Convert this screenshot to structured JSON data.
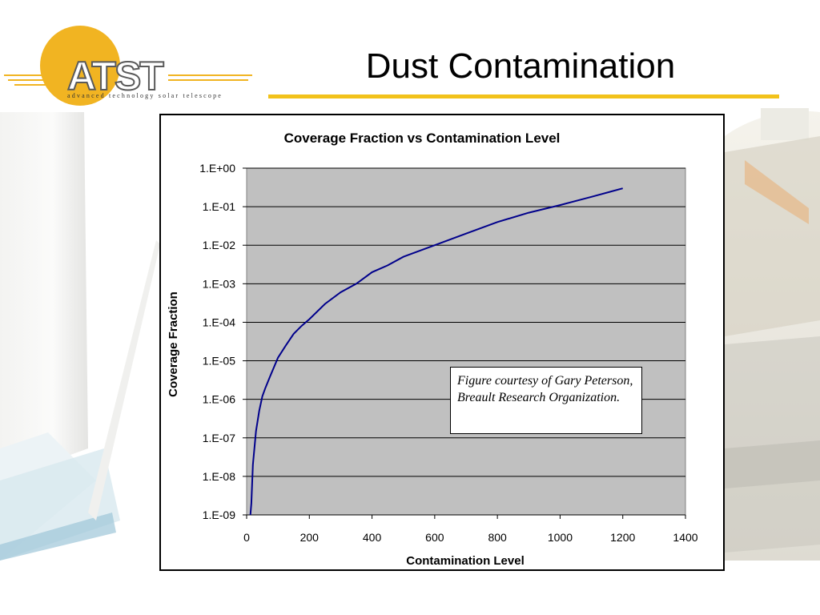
{
  "slide": {
    "title": "Dust Contamination",
    "logo_text": "ATST",
    "logo_tagline": "advanced technology solar telescope",
    "accent_color": "#f2c21a"
  },
  "note": {
    "text": "Figure courtesy of Gary Peterson, Breault Research Organization."
  },
  "chart_data": {
    "type": "line",
    "title": "Coverage Fraction vs Contamination Level",
    "xlabel": "Contamination Level",
    "ylabel": "Coverage Fraction",
    "xlim": [
      0,
      1400
    ],
    "ylim": [
      1e-09,
      1
    ],
    "yscale": "log",
    "x_ticks": [
      0,
      200,
      400,
      600,
      800,
      1000,
      1200,
      1400
    ],
    "x_tick_labels": [
      "0",
      "200",
      "400",
      "600",
      "800",
      "1000",
      "1200",
      "1400"
    ],
    "y_ticks": [
      1e-09,
      1e-08,
      1e-07,
      1e-06,
      1e-05,
      0.0001,
      0.001,
      0.01,
      0.1,
      1
    ],
    "y_tick_labels": [
      "1.E-09",
      "1.E-08",
      "1.E-07",
      "1.E-06",
      "1.E-05",
      "1.E-04",
      "1.E-03",
      "1.E-02",
      "1.E-01",
      "1.E+00"
    ],
    "grid": true,
    "legend": "none",
    "plot_background": "#c0c0c0",
    "line_color": "#00008b",
    "series": [
      {
        "x": [
          12,
          15,
          20,
          30,
          40,
          50,
          60,
          75,
          100,
          125,
          150,
          175,
          200,
          250,
          300,
          350,
          400,
          450,
          500,
          600,
          700,
          800,
          900,
          1000,
          1100,
          1200
        ],
        "y": [
          1e-09,
          2e-09,
          2e-08,
          1.5e-07,
          5e-07,
          1.2e-06,
          2e-06,
          4e-06,
          1.2e-05,
          2.5e-05,
          5e-05,
          8e-05,
          0.00012,
          0.0003,
          0.0006,
          0.001,
          0.002,
          0.003,
          0.005,
          0.01,
          0.02,
          0.04,
          0.07,
          0.11,
          0.18,
          0.3
        ]
      }
    ]
  }
}
